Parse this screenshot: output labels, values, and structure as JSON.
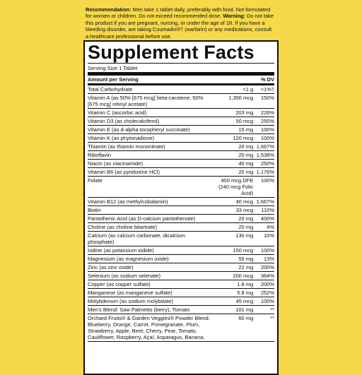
{
  "recommendation": {
    "label": "Recommendation:",
    "text": "Men take 1 tablet daily, preferably with food. Not formulated for women or children. Do not exceed recommended dose.",
    "warning_label": "Warning:",
    "warning_text": "Do not take this product if you are pregnant, nursing, or under the age of 18. If you have a bleeding disorder, are taking Coumadin®† (warfarin) or any medications, consult a healthcare professional before use."
  },
  "facts": {
    "title": "Supplement Facts",
    "serving_size": "Serving Size 1 Tablet",
    "header_amount": "Amount per Serving",
    "header_dv": "% DV",
    "rows": [
      {
        "name": "Total Carbohydrate",
        "amount": "<1 g",
        "dv": "<1%†"
      },
      {
        "name": "Vitamin A (as 50% [675 mcg] beta-carotene, 50% [675 mcg] retinyl acetate)",
        "amount": "1,350 mcg",
        "dv": "150%"
      },
      {
        "name": "Vitamin C (ascorbic acid)",
        "amount": "203 mg",
        "dv": "226%"
      },
      {
        "name": "Vitamin D3 (as cholecalciferol)",
        "amount": "50 mcg",
        "dv": "250%"
      },
      {
        "name": "Vitamin E (as d-alpha tocopheryl succinate)",
        "amount": "15 mg",
        "dv": "100%"
      },
      {
        "name": "Vitamin K (as phytonadione)",
        "amount": "120 mcg",
        "dv": "100%"
      },
      {
        "name": "Thiamin (as thiamin mononitrate)",
        "amount": "20 mg",
        "dv": "1,667%"
      },
      {
        "name": "Riboflavin",
        "amount": "20 mg",
        "dv": "1,538%"
      },
      {
        "name": "Niacin (as niacinamide)",
        "amount": "40 mg",
        "dv": "250%"
      },
      {
        "name": "Vitamin B6 (as pyridoxine HCl)",
        "amount": "20 mg",
        "dv": "1,176%"
      },
      {
        "name": "Folate",
        "amount": "400 mcg DFE",
        "note": "(240 mcg Folic Acid)",
        "dv": "100%"
      },
      {
        "name": "Vitamin B12 (as methylcobalamin)",
        "amount": "40 mcg",
        "dv": "1,667%"
      },
      {
        "name": "Biotin",
        "amount": "33 mcg",
        "dv": "110%"
      },
      {
        "name": "Pantothenic Acid (as D-calcium pantothenate)",
        "amount": "20 mg",
        "dv": "400%"
      },
      {
        "name": "Choline (as choline bitartrate)",
        "amount": "20 mg",
        "dv": "4%"
      },
      {
        "name": "Calcium (as calcium carbonate, dicalcium phosphate)",
        "amount": "130 mg",
        "dv": "10%"
      },
      {
        "name": "Iodine (as potassium iodide)",
        "amount": "150 mcg",
        "dv": "100%"
      },
      {
        "name": "Magnesium (as magnesium oxide)",
        "amount": "55 mg",
        "dv": "13%"
      },
      {
        "name": "Zinc (as zinc oxide)",
        "amount": "22 mg",
        "dv": "200%"
      },
      {
        "name": "Selenium (as sodium selenate)",
        "amount": "200 mcg",
        "dv": "364%"
      },
      {
        "name": "Copper (as copper sulfate)",
        "amount": "1.8 mg",
        "dv": "200%"
      },
      {
        "name": "Manganese (as manganese sulfate)",
        "amount": "5.8 mg",
        "dv": "252%"
      },
      {
        "name": "Molybdenum (as sodium molybdate)",
        "amount": "45 mcg",
        "dv": "100%"
      },
      {
        "name": "Men's Blend: Saw Palmetto (berry), Tomato",
        "amount": "101 mg",
        "dv": "**"
      },
      {
        "name": "Orchard Fruits® & Garden Veggies® Powder Blend: Blueberry, Orange, Carrot, Pomegranate, Plum, Strawberry, Apple, Beet, Cherry, Pear, Tomato, Cauliflower, Raspberry, Açaí, Asparagus, Banana,",
        "amount": "60 mg",
        "dv": "**"
      }
    ]
  }
}
